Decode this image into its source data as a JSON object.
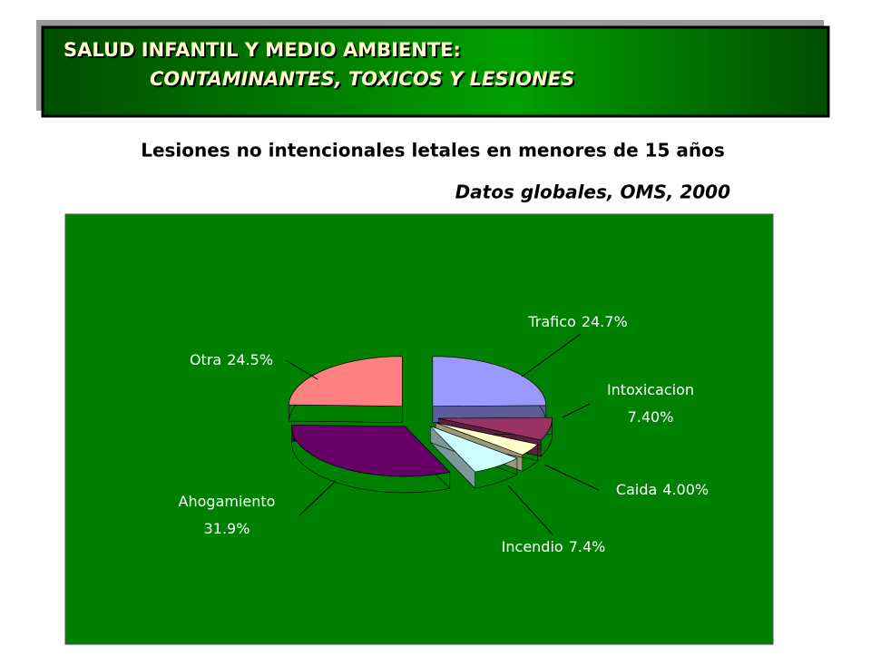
{
  "header": {
    "line1": "SALUD INFANTIL Y  MEDIO AMBIENTE:",
    "line2": "CONTAMINANTES, TOXICOS Y  LESIONES"
  },
  "chart_data": {
    "type": "pie",
    "title": "Lesiones no intencionales letales en menores de 15 años",
    "subtitle": "Datos globales, OMS, 2000",
    "categories": [
      "Trafico",
      "Intoxicacion",
      "Caida",
      "Incendio",
      "Ahogamiento",
      "Otra"
    ],
    "values": [
      24.7,
      7.4,
      4,
      7.4,
      31.9,
      24.5
    ],
    "value_labels": [
      "24.7%",
      "7.40%",
      "4.00%",
      "7.4%",
      "31.9%",
      "24.5%"
    ],
    "colors": [
      "#9999ff",
      "#993366",
      "#ffffcc",
      "#ccffff",
      "#660066",
      "#ff8080"
    ],
    "background": "#008000"
  }
}
